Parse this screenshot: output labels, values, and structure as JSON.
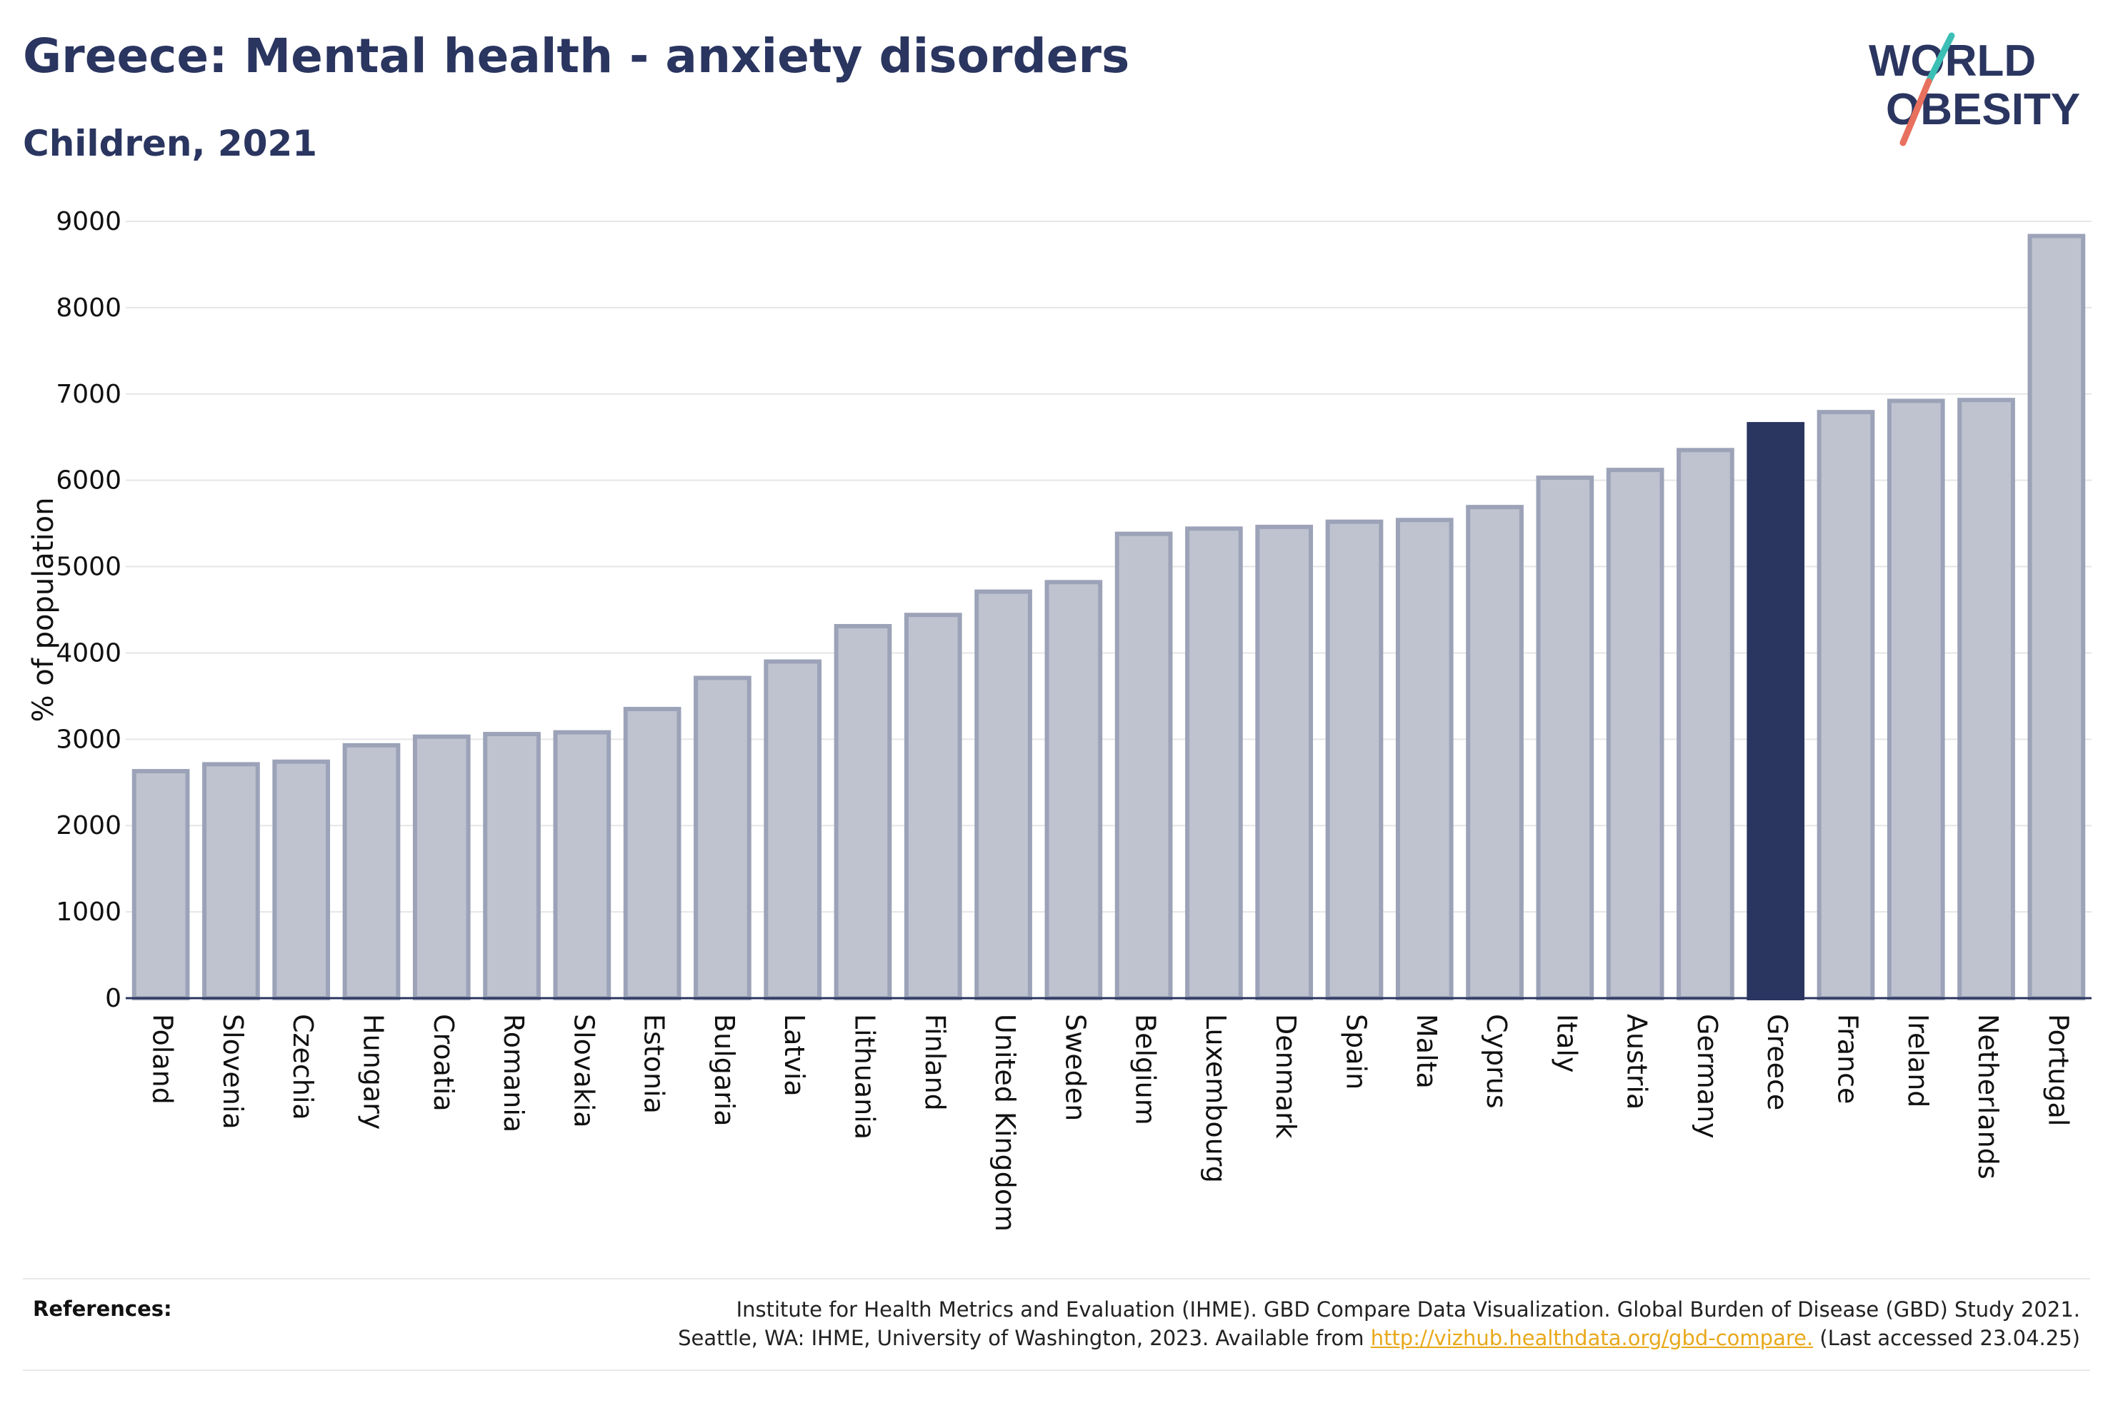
{
  "header": {
    "title": "Greece: Mental health - anxiety disorders",
    "subtitle": "Children, 2021"
  },
  "logo": {
    "line1": "WORLD",
    "line2": "OBESITY",
    "slash_colors": [
      "#3bbfb5",
      "#e8705e"
    ]
  },
  "colors": {
    "bar_default": "#bfc3d0",
    "bar_stroke": "#9ca3b8",
    "bar_highlight": "#2a3560",
    "text": "#2a3560",
    "link": "#e8a81a"
  },
  "chart_data": {
    "type": "bar",
    "ylabel": "% of population",
    "ylim": [
      0,
      9000
    ],
    "yticks": [
      0,
      1000,
      2000,
      3000,
      4000,
      5000,
      6000,
      7000,
      8000,
      9000
    ],
    "grid": true,
    "highlight": "Greece",
    "categories": [
      "Poland",
      "Slovenia",
      "Czechia",
      "Hungary",
      "Croatia",
      "Romania",
      "Slovakia",
      "Estonia",
      "Bulgaria",
      "Latvia",
      "Lithuania",
      "Finland",
      "United Kingdom",
      "Sweden",
      "Belgium",
      "Luxembourg",
      "Denmark",
      "Spain",
      "Malta",
      "Cyprus",
      "Italy",
      "Austria",
      "Germany",
      "Greece",
      "France",
      "Ireland",
      "Netherlands",
      "Portugal"
    ],
    "values": [
      2630,
      2710,
      2740,
      2930,
      3030,
      3060,
      3080,
      3350,
      3710,
      3900,
      4310,
      4440,
      4710,
      4820,
      5380,
      5440,
      5460,
      5520,
      5540,
      5690,
      6030,
      6120,
      6350,
      6650,
      6790,
      6920,
      6930,
      8830
    ]
  },
  "references": {
    "label": "References:",
    "line1": "Institute for Health Metrics and Evaluation (IHME). GBD Compare Data Visualization. Global Burden of Disease (GBD) Study 2021.",
    "line2_prefix": "Seattle, WA: IHME, University of Washington, 2023. Available from ",
    "link": "http://vizhub.healthdata.org/gbd-compare.",
    "line2_suffix": " (Last accessed 23.04.25)"
  }
}
